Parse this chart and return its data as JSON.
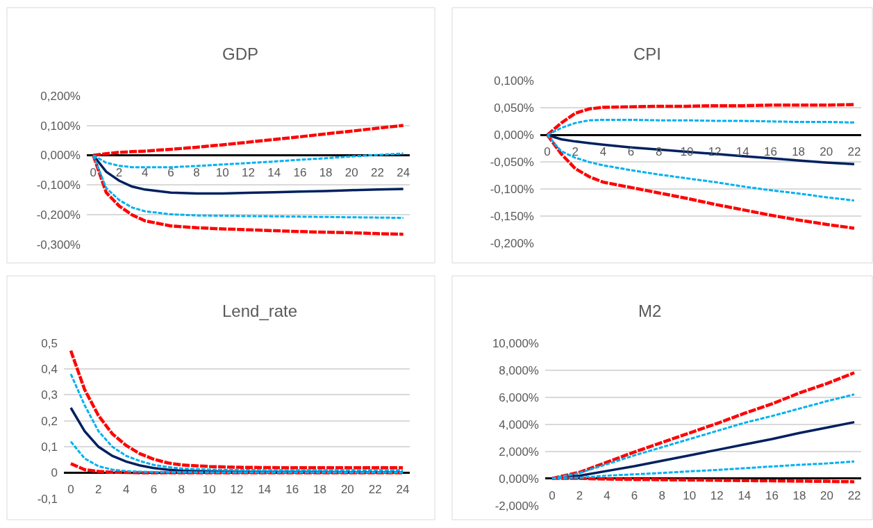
{
  "chart_data": [
    {
      "type": "line",
      "title": "GDP",
      "grid": "y",
      "x": [
        0,
        1,
        2,
        3,
        4,
        6,
        8,
        10,
        12,
        14,
        16,
        18,
        20,
        22,
        24
      ],
      "xlim": [
        -0.5,
        24.5
      ],
      "xticks": [
        0,
        2,
        4,
        6,
        8,
        10,
        12,
        14,
        16,
        18,
        20,
        22,
        24
      ],
      "ylim": [
        -0.3,
        0.2
      ],
      "yticks": [
        {
          "value": -0.3,
          "label": "-0,300%"
        },
        {
          "value": -0.2,
          "label": "-0,200%"
        },
        {
          "value": -0.1,
          "label": "-0,100%"
        },
        {
          "value": 0,
          "label": "0,000%"
        },
        {
          "value": 0.1,
          "label": "0,100%"
        },
        {
          "value": 0.2,
          "label": "0,200%"
        }
      ],
      "series": [
        {
          "color": "#ff0000",
          "line_style": "dashed",
          "values": [
            0,
            0.005,
            0.01,
            0.012,
            0.014,
            0.02,
            0.027,
            0.035,
            0.044,
            0.053,
            0.062,
            0.072,
            0.081,
            0.091,
            0.1
          ]
        },
        {
          "color": "#00b0f0",
          "line_style": "dotted",
          "values": [
            0,
            -0.025,
            -0.035,
            -0.04,
            -0.04,
            -0.04,
            -0.036,
            -0.031,
            -0.026,
            -0.021,
            -0.015,
            -0.01,
            -0.004,
            0.001,
            0.006
          ]
        },
        {
          "color": "#002060",
          "line_style": "solid",
          "values": [
            0,
            -0.055,
            -0.085,
            -0.105,
            -0.115,
            -0.125,
            -0.128,
            -0.128,
            -0.126,
            -0.124,
            -0.122,
            -0.12,
            -0.117,
            -0.115,
            -0.113
          ]
        },
        {
          "color": "#00b0f0",
          "line_style": "dotted",
          "values": [
            0,
            -0.11,
            -0.15,
            -0.175,
            -0.188,
            -0.198,
            -0.202,
            -0.203,
            -0.204,
            -0.205,
            -0.206,
            -0.207,
            -0.208,
            -0.209,
            -0.21
          ]
        },
        {
          "color": "#ff0000",
          "line_style": "dashed",
          "values": [
            0,
            -0.125,
            -0.17,
            -0.2,
            -0.22,
            -0.237,
            -0.243,
            -0.247,
            -0.25,
            -0.253,
            -0.256,
            -0.258,
            -0.26,
            -0.263,
            -0.265
          ]
        }
      ]
    },
    {
      "type": "line",
      "title": "CPI",
      "grid": "y",
      "x": [
        0,
        1,
        2,
        3,
        4,
        6,
        8,
        10,
        12,
        14,
        16,
        18,
        20,
        22
      ],
      "xlim": [
        -0.5,
        22.5
      ],
      "xticks": [
        0,
        2,
        4,
        6,
        8,
        10,
        12,
        14,
        16,
        18,
        20,
        22
      ],
      "ylim": [
        -0.2,
        0.1
      ],
      "yticks": [
        {
          "value": -0.2,
          "label": "-0,200%"
        },
        {
          "value": -0.15,
          "label": "-0,150%"
        },
        {
          "value": -0.1,
          "label": "-0,100%"
        },
        {
          "value": -0.05,
          "label": "-0,050%"
        },
        {
          "value": 0,
          "label": "0,000%"
        },
        {
          "value": 0.05,
          "label": "0,050%"
        },
        {
          "value": 0.1,
          "label": "0,100%"
        }
      ],
      "series": [
        {
          "color": "#ff0000",
          "line_style": "dashed",
          "values": [
            0,
            0.022,
            0.04,
            0.048,
            0.051,
            0.052,
            0.053,
            0.053,
            0.054,
            0.054,
            0.055,
            0.055,
            0.055,
            0.056
          ]
        },
        {
          "color": "#00b0f0",
          "line_style": "dotted",
          "values": [
            0,
            0.013,
            0.022,
            0.027,
            0.028,
            0.028,
            0.027,
            0.027,
            0.026,
            0.026,
            0.025,
            0.024,
            0.024,
            0.023
          ]
        },
        {
          "color": "#002060",
          "line_style": "solid",
          "values": [
            0,
            -0.008,
            -0.012,
            -0.015,
            -0.018,
            -0.023,
            -0.027,
            -0.031,
            -0.035,
            -0.039,
            -0.043,
            -0.047,
            -0.051,
            -0.054
          ]
        },
        {
          "color": "#00b0f0",
          "line_style": "dotted",
          "values": [
            0,
            -0.03,
            -0.042,
            -0.05,
            -0.056,
            -0.065,
            -0.073,
            -0.08,
            -0.087,
            -0.095,
            -0.102,
            -0.108,
            -0.115,
            -0.121
          ]
        },
        {
          "color": "#ff0000",
          "line_style": "dashed",
          "values": [
            0,
            -0.035,
            -0.062,
            -0.077,
            -0.087,
            -0.097,
            -0.107,
            -0.117,
            -0.128,
            -0.138,
            -0.148,
            -0.157,
            -0.165,
            -0.172
          ]
        }
      ]
    },
    {
      "type": "line",
      "title": "Lend_rate",
      "grid": "y",
      "x": [
        0,
        1,
        2,
        3,
        4,
        5,
        6,
        7,
        8,
        10,
        12,
        14,
        16,
        18,
        20,
        22,
        24
      ],
      "xlim": [
        -0.5,
        24.5
      ],
      "xticks": [
        0,
        2,
        4,
        6,
        8,
        10,
        12,
        14,
        16,
        18,
        20,
        22,
        24
      ],
      "ylim": [
        -0.1,
        0.5
      ],
      "yticks": [
        {
          "value": -0.1,
          "label": "-0,1"
        },
        {
          "value": 0,
          "label": "0"
        },
        {
          "value": 0.1,
          "label": "0,1"
        },
        {
          "value": 0.2,
          "label": "0,2"
        },
        {
          "value": 0.3,
          "label": "0,3"
        },
        {
          "value": 0.4,
          "label": "0,4"
        },
        {
          "value": 0.5,
          "label": "0,5"
        }
      ],
      "series": [
        {
          "color": "#ff0000",
          "line_style": "dashed",
          "values": [
            0.47,
            0.32,
            0.22,
            0.15,
            0.105,
            0.073,
            0.052,
            0.038,
            0.03,
            0.024,
            0.021,
            0.02,
            0.019,
            0.019,
            0.019,
            0.019,
            0.019
          ]
        },
        {
          "color": "#00b0f0",
          "line_style": "dotted",
          "values": [
            0.38,
            0.26,
            0.16,
            0.1,
            0.065,
            0.045,
            0.03,
            0.022,
            0.016,
            0.012,
            0.011,
            0.01,
            0.01,
            0.01,
            0.01,
            0.01,
            0.01
          ]
        },
        {
          "color": "#002060",
          "line_style": "solid",
          "values": [
            0.25,
            0.16,
            0.1,
            0.065,
            0.043,
            0.028,
            0.018,
            0.012,
            0.008,
            0.005,
            0.004,
            0.003,
            0.003,
            0.003,
            0.002,
            0.002,
            0.002
          ]
        },
        {
          "color": "#00b0f0",
          "line_style": "dotted",
          "values": [
            0.12,
            0.055,
            0.025,
            0.012,
            0.006,
            0.004,
            0.003,
            0.002,
            0.002,
            0.001,
            0.001,
            0.001,
            0.001,
            0.001,
            0.001,
            0.001,
            0.001
          ]
        },
        {
          "color": "#ff0000",
          "line_style": "dashed",
          "values": [
            0.035,
            0.012,
            0.005,
            0.002,
            0.001,
            0,
            0,
            0,
            0,
            0,
            0,
            0,
            0,
            0,
            0,
            0,
            0
          ]
        }
      ]
    },
    {
      "type": "line",
      "title": "M2",
      "grid": "y",
      "x": [
        0,
        2,
        4,
        6,
        8,
        10,
        12,
        14,
        16,
        18,
        20,
        22
      ],
      "xlim": [
        -0.5,
        22.5
      ],
      "xticks": [
        0,
        2,
        4,
        6,
        8,
        10,
        12,
        14,
        16,
        18,
        20,
        22
      ],
      "ylim": [
        -2,
        10
      ],
      "yticks": [
        {
          "value": -2,
          "label": "-2,000%"
        },
        {
          "value": 0,
          "label": "0,000%"
        },
        {
          "value": 2,
          "label": "2,000%"
        },
        {
          "value": 4,
          "label": "4,000%"
        },
        {
          "value": 6,
          "label": "6,000%"
        },
        {
          "value": 8,
          "label": "8,000%"
        },
        {
          "value": 10,
          "label": "10,000%"
        }
      ],
      "series": [
        {
          "color": "#ff0000",
          "line_style": "dashed",
          "values": [
            0,
            0.45,
            1.2,
            1.95,
            2.65,
            3.35,
            4.05,
            4.8,
            5.5,
            6.3,
            7.0,
            7.8
          ]
        },
        {
          "color": "#00b0f0",
          "line_style": "dotted",
          "values": [
            0,
            0.4,
            1.05,
            1.7,
            2.3,
            2.9,
            3.5,
            4.1,
            4.6,
            5.15,
            5.7,
            6.2
          ]
        },
        {
          "color": "#002060",
          "line_style": "solid",
          "values": [
            0,
            0.2,
            0.55,
            0.9,
            1.3,
            1.7,
            2.1,
            2.5,
            2.9,
            3.35,
            3.75,
            4.15
          ]
        },
        {
          "color": "#00b0f0",
          "line_style": "dotted",
          "values": [
            0,
            0.05,
            0.2,
            0.3,
            0.4,
            0.52,
            0.62,
            0.75,
            0.88,
            1.0,
            1.1,
            1.25
          ]
        },
        {
          "color": "#ff0000",
          "line_style": "dashed",
          "values": [
            0,
            0,
            -0.05,
            -0.08,
            -0.1,
            -0.12,
            -0.14,
            -0.16,
            -0.18,
            -0.2,
            -0.22,
            -0.25
          ]
        }
      ]
    }
  ]
}
